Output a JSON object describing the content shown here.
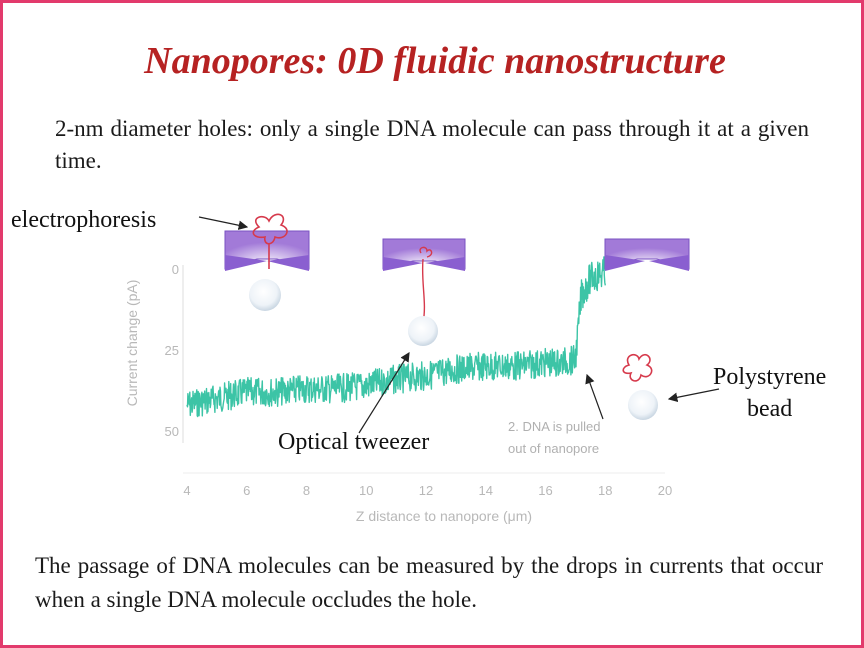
{
  "slide": {
    "title": "Nanopores: 0D fluidic nanostructure",
    "intro": "2-nm diameter holes: only a single DNA molecule can pass through it at a given time.",
    "conclusion": "The passage of DNA molecules can be measured by the drops in currents that occur when a single DNA molecule occludes the hole.",
    "labels": {
      "electrophoresis": "electrophoresis",
      "optical_tweezer": "Optical tweezer",
      "polystyrene_line1": "Polystyrene",
      "polystyrene_line2": "bead"
    },
    "colors": {
      "border": "#e23a6c",
      "title": "#b62222",
      "trace": "#3cc4a6",
      "membrane": "#8a5fd0",
      "dna": "#d63a4c"
    }
  },
  "chart_data": {
    "type": "line",
    "xlabel": "Z distance to nanopore (μm)",
    "ylabel": "Current change (pA)",
    "x_ticks": [
      "4",
      "6",
      "8",
      "10",
      "12",
      "14",
      "16",
      "18",
      "20"
    ],
    "y_ticks": [
      "0",
      "25",
      "50"
    ],
    "xlim": [
      4,
      20
    ],
    "ylim": [
      0,
      50
    ],
    "y_inverted": true,
    "annotation_line1": "2. DNA is pulled",
    "annotation_line2": "out of nanopore",
    "series": [
      {
        "x": [
          4,
          5,
          6,
          7,
          8,
          9,
          10,
          11,
          12,
          13,
          14,
          15,
          16,
          16.5,
          17,
          17.2,
          17.5,
          18
        ],
        "values": [
          42,
          40,
          38,
          38,
          37,
          37,
          36,
          34,
          33,
          31,
          30,
          30,
          29,
          29,
          28,
          8,
          3,
          1
        ]
      }
    ]
  }
}
